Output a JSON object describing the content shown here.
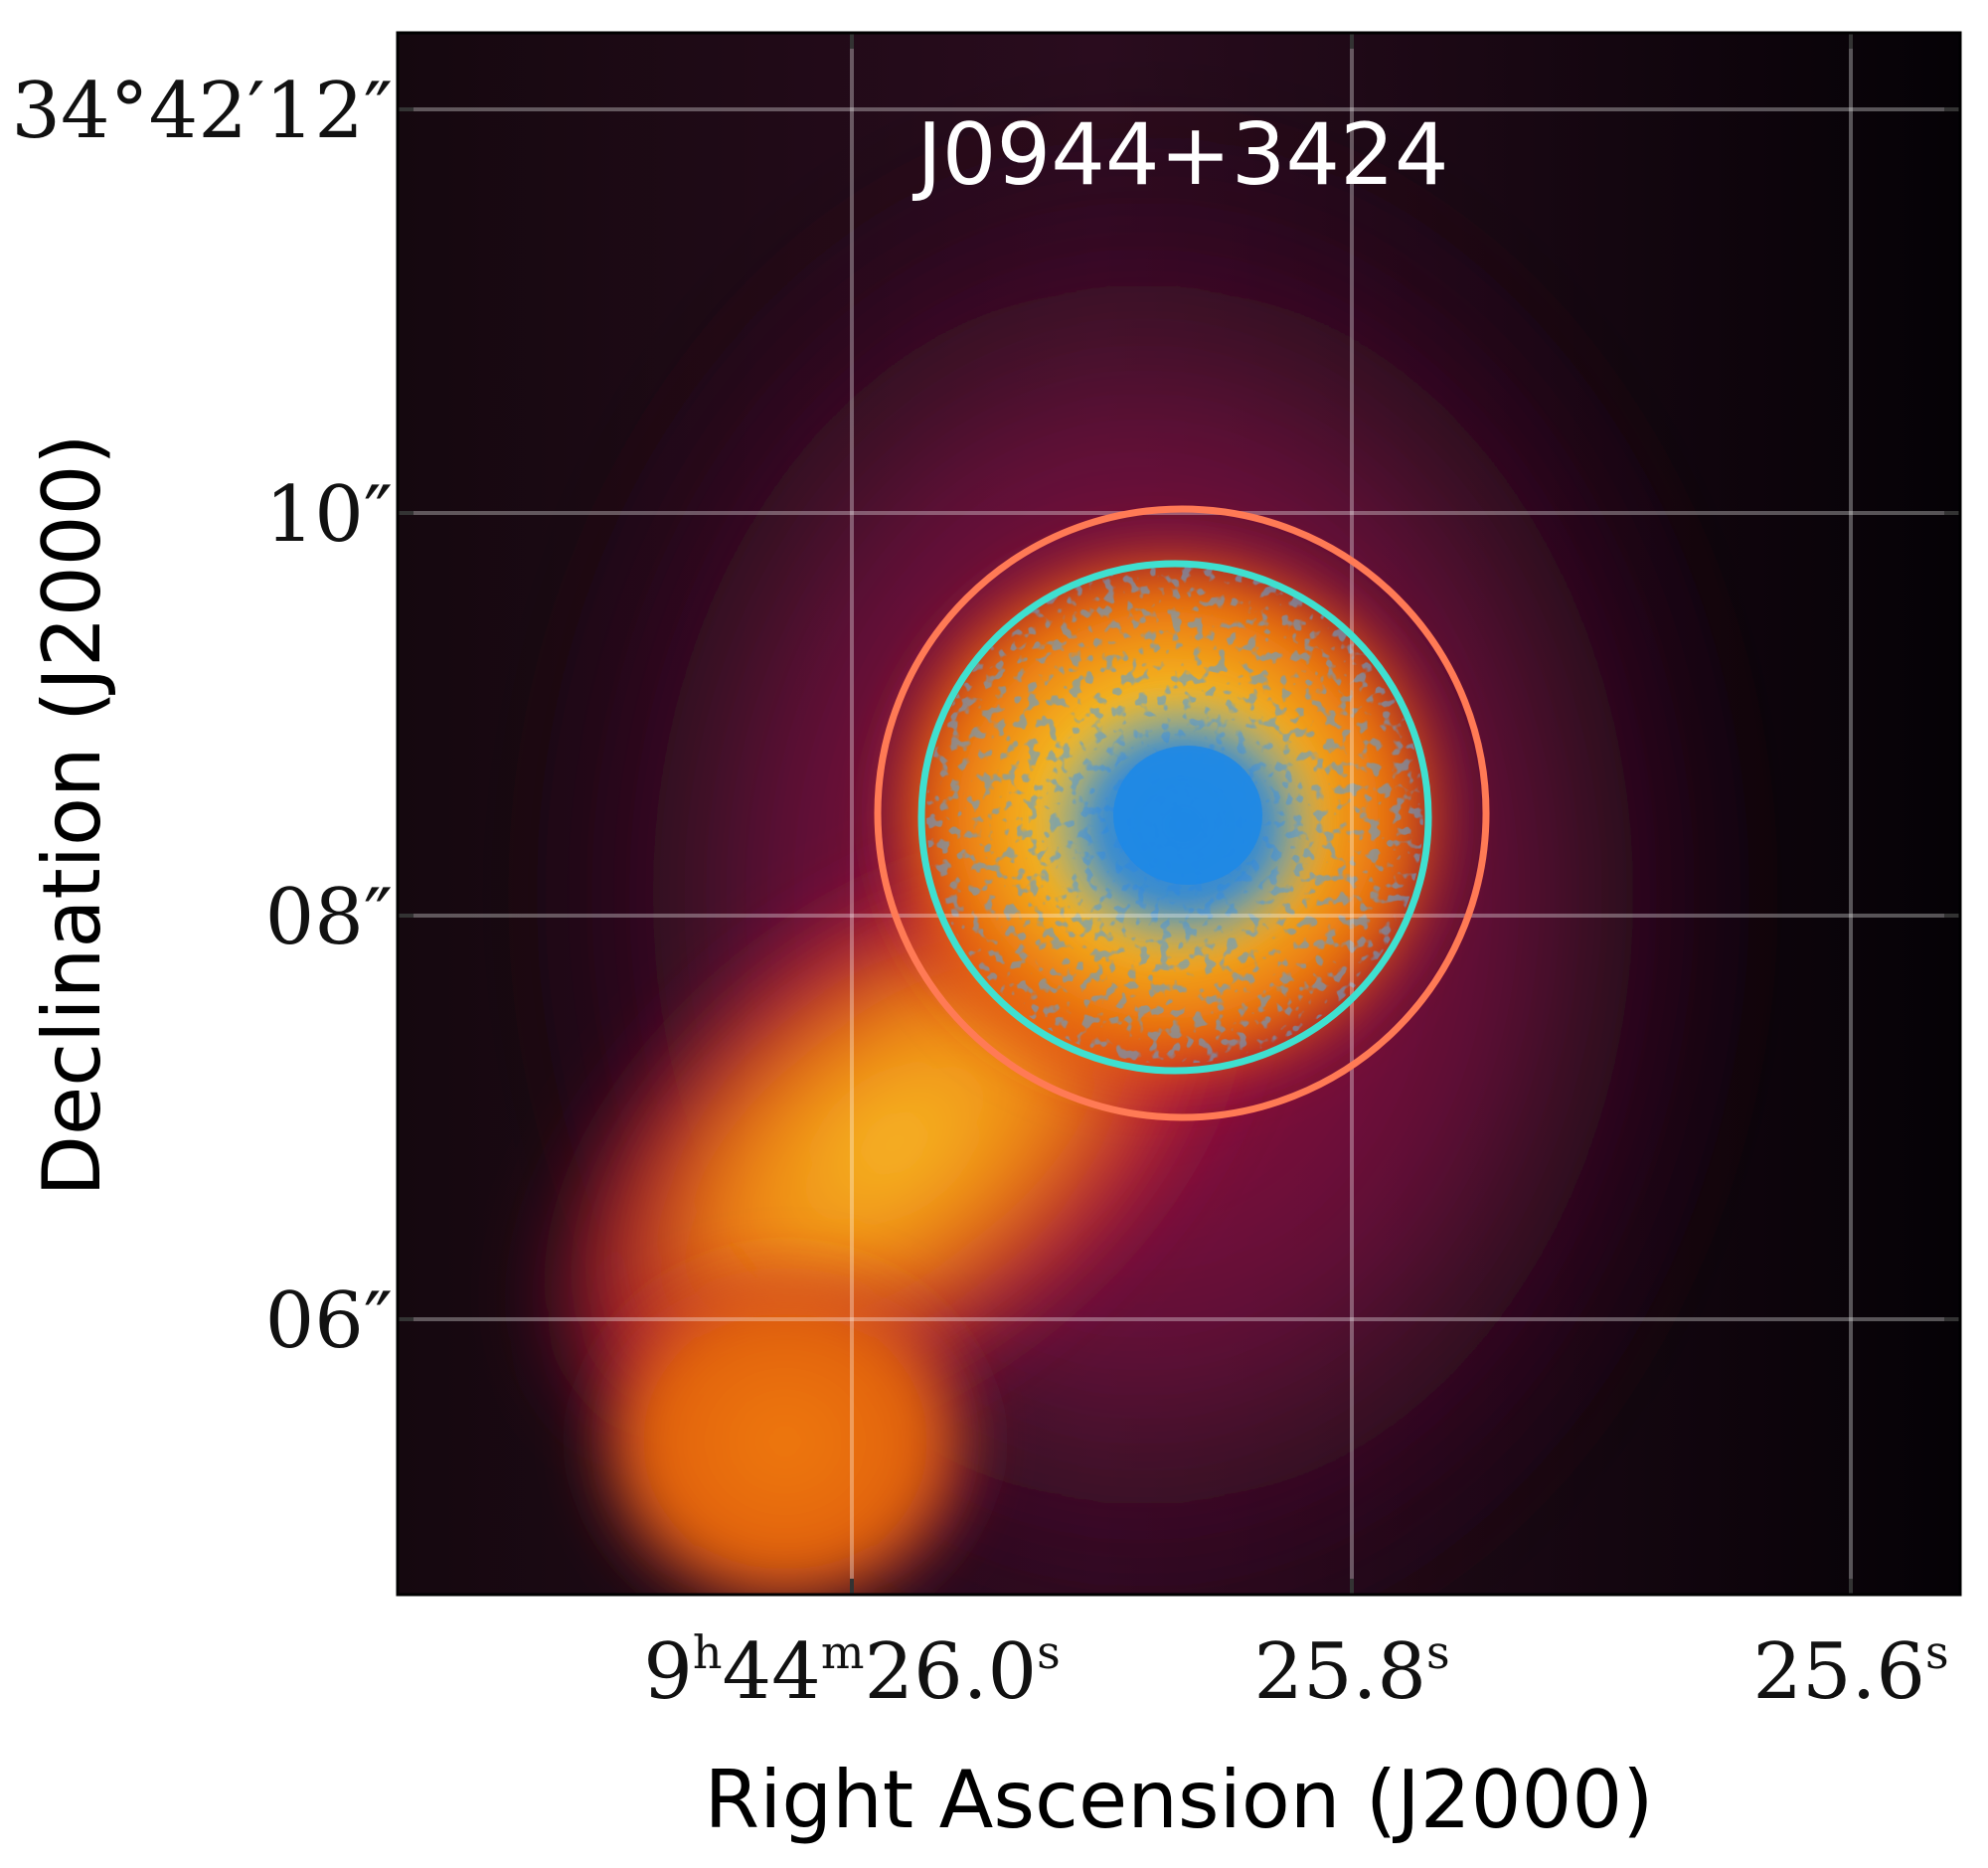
{
  "image": {
    "title": "J0944+3424",
    "x_axis_label": "Right Ascension (J2000)",
    "y_axis_label": "Declination (J2000)",
    "x_ticks": [
      {
        "h": "9",
        "m": "44",
        "s": "26.0"
      },
      {
        "s": "25.8"
      },
      {
        "s": "25.6"
      }
    ],
    "y_ticks": [
      {
        "d": "34",
        "am": "42",
        "as": "12"
      },
      {
        "as": "10"
      },
      {
        "as": "08"
      },
      {
        "as": "06"
      }
    ],
    "overlay_colors": {
      "outer_circle": "#ff7a55",
      "inner_circle": "#3fe0d0",
      "core": "#1e88e5"
    }
  }
}
